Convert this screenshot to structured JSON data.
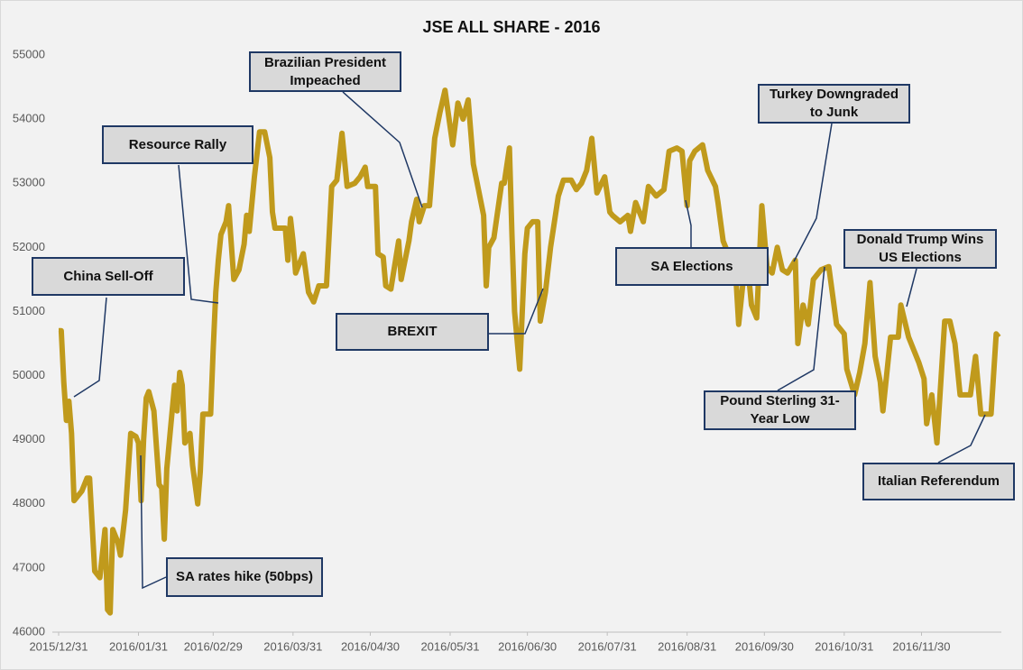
{
  "chart_data": {
    "type": "line",
    "title": "JSE ALL SHARE - 2016",
    "x": [
      "2015/12/31",
      "2016/01/01",
      "2016/01/02",
      "2016/01/03",
      "2016/01/04",
      "2016/01/05",
      "2016/01/06",
      "2016/01/09",
      "2016/01/11",
      "2016/01/12",
      "2016/01/14",
      "2016/01/16",
      "2016/01/18",
      "2016/01/19",
      "2016/01/20",
      "2016/01/21",
      "2016/01/23",
      "2016/01/24",
      "2016/01/26",
      "2016/01/28",
      "2016/01/30",
      "2016/01/31",
      "2016/02/01",
      "2016/02/02",
      "2016/02/03",
      "2016/02/04",
      "2016/02/06",
      "2016/02/08",
      "2016/02/09",
      "2016/02/10",
      "2016/02/11",
      "2016/02/14",
      "2016/02/15",
      "2016/02/16",
      "2016/02/17",
      "2016/02/18",
      "2016/02/20",
      "2016/02/21",
      "2016/02/23",
      "2016/02/24",
      "2016/02/25",
      "2016/02/28",
      "2016/02/29",
      "2016/03/01",
      "2016/03/02",
      "2016/03/03",
      "2016/03/05",
      "2016/03/06",
      "2016/03/08",
      "2016/03/10",
      "2016/03/12",
      "2016/03/13",
      "2016/03/14",
      "2016/03/16",
      "2016/03/18",
      "2016/03/20",
      "2016/03/22",
      "2016/03/23",
      "2016/03/24",
      "2016/03/28",
      "2016/03/29",
      "2016/03/30",
      "2016/03/31",
      "2016/04/01",
      "2016/04/04",
      "2016/04/06",
      "2016/04/08",
      "2016/04/10",
      "2016/04/13",
      "2016/04/15",
      "2016/04/17",
      "2016/04/19",
      "2016/04/21",
      "2016/04/24",
      "2016/04/26",
      "2016/04/28",
      "2016/04/29",
      "2016/05/02",
      "2016/05/03",
      "2016/05/05",
      "2016/05/06",
      "2016/05/08",
      "2016/05/11",
      "2016/05/12",
      "2016/05/15",
      "2016/05/16",
      "2016/05/18",
      "2016/05/19",
      "2016/05/21",
      "2016/05/23",
      "2016/05/25",
      "2016/05/27",
      "2016/05/29",
      "2016/06/01",
      "2016/06/03",
      "2016/06/05",
      "2016/06/07",
      "2016/06/09",
      "2016/06/11",
      "2016/06/13",
      "2016/06/14",
      "2016/06/15",
      "2016/06/17",
      "2016/06/20",
      "2016/06/21",
      "2016/06/23",
      "2016/06/24",
      "2016/06/25",
      "2016/06/27",
      "2016/06/29",
      "2016/06/30",
      "2016/07/02",
      "2016/07/04",
      "2016/07/05",
      "2016/07/07",
      "2016/07/09",
      "2016/07/12",
      "2016/07/14",
      "2016/07/17",
      "2016/07/19",
      "2016/07/21",
      "2016/07/23",
      "2016/07/25",
      "2016/07/27",
      "2016/07/30",
      "2016/08/01",
      "2016/08/02",
      "2016/08/05",
      "2016/08/08",
      "2016/08/09",
      "2016/08/11",
      "2016/08/14",
      "2016/08/16",
      "2016/08/19",
      "2016/08/22",
      "2016/08/24",
      "2016/08/27",
      "2016/08/29",
      "2016/08/31",
      "2016/09/01",
      "2016/09/03",
      "2016/09/06",
      "2016/09/08",
      "2016/09/11",
      "2016/09/12",
      "2016/09/14",
      "2016/09/17",
      "2016/09/19",
      "2016/09/20",
      "2016/09/23",
      "2016/09/25",
      "2016/09/27",
      "2016/09/29",
      "2016/10/01",
      "2016/10/03",
      "2016/10/05",
      "2016/10/07",
      "2016/10/09",
      "2016/10/12",
      "2016/10/13",
      "2016/10/15",
      "2016/10/17",
      "2016/10/19",
      "2016/10/22",
      "2016/10/25",
      "2016/10/26",
      "2016/10/28",
      "2016/10/31",
      "2016/11/01",
      "2016/11/04",
      "2016/11/06",
      "2016/11/08",
      "2016/11/10",
      "2016/11/12",
      "2016/11/14",
      "2016/11/15",
      "2016/11/18",
      "2016/11/21",
      "2016/11/22",
      "2016/11/25",
      "2016/11/27",
      "2016/11/29",
      "2016/12/01",
      "2016/12/02",
      "2016/12/04",
      "2016/12/06",
      "2016/12/09",
      "2016/12/11",
      "2016/12/13",
      "2016/12/15",
      "2016/12/19",
      "2016/12/21",
      "2016/12/23",
      "2016/12/27",
      "2016/12/29",
      "2016/12/30"
    ],
    "series": [
      {
        "name": "JSE All Share",
        "color": "#c09a1c",
        "values": [
          50700,
          50700,
          49900,
          49300,
          49600,
          49100,
          48050,
          48200,
          48400,
          48400,
          46950,
          46850,
          47600,
          46350,
          46300,
          47600,
          47400,
          47200,
          47900,
          49100,
          49050,
          48950,
          48050,
          49000,
          49650,
          49750,
          49450,
          48300,
          48250,
          47450,
          48550,
          49850,
          49450,
          50050,
          49850,
          48950,
          49100,
          48600,
          48000,
          48500,
          49400,
          49400,
          50400,
          51300,
          51800,
          52200,
          52400,
          52650,
          51500,
          51650,
          52050,
          52500,
          52250,
          53100,
          53800,
          53800,
          53400,
          52550,
          52300,
          52300,
          51800,
          52450,
          52100,
          51600,
          51900,
          51300,
          51150,
          51400,
          51400,
          52950,
          53050,
          53780,
          52950,
          53000,
          53100,
          53250,
          52950,
          52950,
          51900,
          51850,
          51400,
          51350,
          52100,
          51500,
          52100,
          52400,
          52750,
          52400,
          52650,
          52650,
          53700,
          54100,
          54450,
          53600,
          54250,
          54000,
          54300,
          53300,
          52900,
          52500,
          51400,
          52000,
          52150,
          53000,
          53000,
          53550,
          52200,
          51000,
          50100,
          51900,
          52300,
          52400,
          52400,
          50850,
          51300,
          52000,
          52800,
          53050,
          53050,
          52900,
          53000,
          53200,
          53700,
          52850,
          53100,
          52550,
          52500,
          52400,
          52500,
          52250,
          52700,
          52400,
          52950,
          52800,
          52900,
          53500,
          53550,
          53500,
          52650,
          53350,
          53500,
          53600,
          53200,
          52950,
          52700,
          52100,
          51800,
          51500,
          50800,
          51950,
          51100,
          50900,
          52650,
          51700,
          51600,
          52000,
          51650,
          51600,
          51800,
          50500,
          51100,
          50800,
          51500,
          51650,
          51700,
          51400,
          50800,
          50650,
          50100,
          49700,
          50050,
          50500,
          51450,
          50300,
          49900,
          49450,
          50600,
          50600,
          51100,
          50600,
          50400,
          50200,
          49950,
          49250,
          49700,
          48950,
          50850,
          50850,
          50500,
          49700,
          49700,
          50300,
          49400,
          49400,
          50650,
          50600
        ]
      }
    ],
    "xlim": [
      "2015/12/31",
      "2016/12/31"
    ],
    "xticks": [
      "2015/12/31",
      "2016/01/31",
      "2016/02/29",
      "2016/03/31",
      "2016/04/30",
      "2016/05/31",
      "2016/06/30",
      "2016/07/31",
      "2016/08/31",
      "2016/09/30",
      "2016/10/31",
      "2016/11/30"
    ],
    "ylim": [
      46000,
      55000
    ],
    "yticks": [
      46000,
      47000,
      48000,
      49000,
      50000,
      51000,
      52000,
      53000,
      54000,
      55000
    ],
    "grid": false,
    "annotations": [
      {
        "text": "China Sell-Off"
      },
      {
        "text": "SA rates hike (50bps)"
      },
      {
        "text": "Resource Rally"
      },
      {
        "text": "Brazilian President Impeached"
      },
      {
        "text": "BREXIT"
      },
      {
        "text": "SA Elections"
      },
      {
        "text": "Turkey Downgraded to Junk"
      },
      {
        "text": "Pound Sterling 31-Year Low"
      },
      {
        "text": "Donald Trump Wins US Elections"
      },
      {
        "text": "Italian Referendum"
      }
    ]
  }
}
